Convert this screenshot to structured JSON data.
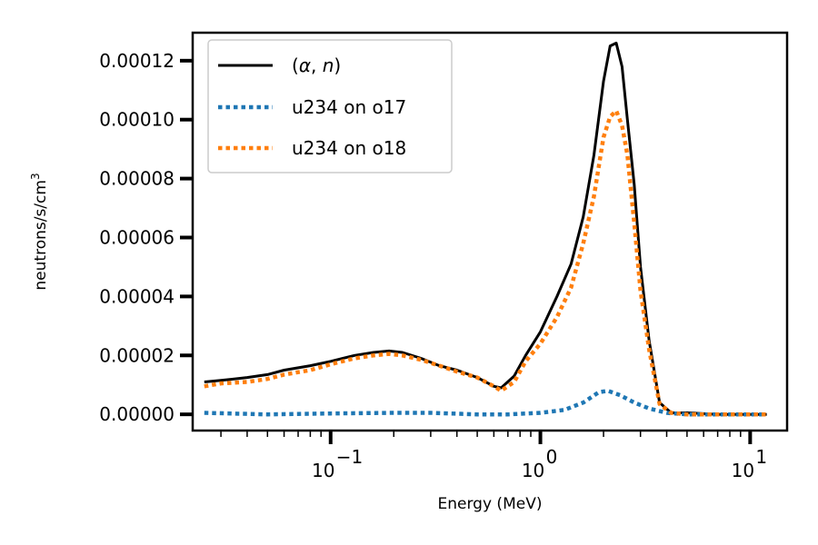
{
  "chart_data": {
    "type": "line",
    "xlabel": "Energy (MeV)",
    "ylabel": "neutrons/s/cm",
    "ylabel_sup": "3",
    "xscale": "log",
    "xlim": [
      0.022,
      15
    ],
    "ylim": [
      -5.5e-06,
      0.0001295
    ],
    "yticks": [
      0,
      2e-05,
      4e-05,
      6e-05,
      8e-05,
      0.0001,
      0.00012
    ],
    "ytick_labels": [
      "0.00000",
      "0.00002",
      "0.00004",
      "0.00006",
      "0.00008",
      "0.00010",
      "0.00012"
    ],
    "xticks": [
      0.1,
      1,
      10
    ],
    "xtick_labels": [
      {
        "base": "10",
        "exp": "−1"
      },
      {
        "base": "10",
        "exp": "0"
      },
      {
        "base": "10",
        "exp": "1"
      }
    ],
    "legend": {
      "position": "top-left"
    },
    "series": [
      {
        "name": "(α, n)",
        "name_parts": {
          "open": "(",
          "a": "α",
          "sep": ", ",
          "b": "n",
          "close": ")"
        },
        "color": "#000000",
        "style": "solid",
        "x": [
          0.025,
          0.03,
          0.04,
          0.05,
          0.06,
          0.08,
          0.1,
          0.13,
          0.16,
          0.19,
          0.22,
          0.27,
          0.33,
          0.4,
          0.5,
          0.6,
          0.65,
          0.75,
          0.85,
          1.0,
          1.2,
          1.4,
          1.6,
          1.8,
          2.0,
          2.15,
          2.3,
          2.45,
          2.6,
          2.8,
          3.0,
          3.3,
          3.7,
          4.2,
          5.0,
          7.0,
          9.0,
          12.0
        ],
        "y": [
          1.1e-05,
          1.15e-05,
          1.25e-05,
          1.35e-05,
          1.5e-05,
          1.65e-05,
          1.8e-05,
          2e-05,
          2.1e-05,
          2.15e-05,
          2.1e-05,
          1.9e-05,
          1.65e-05,
          1.5e-05,
          1.25e-05,
          9.5e-06,
          9e-06,
          1.3e-05,
          2e-05,
          2.8e-05,
          4e-05,
          5.1e-05,
          6.7e-05,
          8.8e-05,
          0.000113,
          0.000125,
          0.000126,
          0.000118,
          0.0001,
          7.8e-05,
          5e-05,
          2.5e-05,
          4e-06,
          5e-07,
          5e-07,
          0.0,
          0.0,
          0.0
        ]
      },
      {
        "name": "u234 on o17",
        "color": "#1f77b4",
        "style": "dotted",
        "x": [
          0.025,
          0.05,
          0.1,
          0.2,
          0.3,
          0.5,
          0.7,
          1.0,
          1.3,
          1.6,
          1.9,
          2.1,
          2.4,
          2.8,
          3.3,
          4.0,
          5.0,
          7.0,
          9.0,
          12.0
        ],
        "y": [
          5e-07,
          0.0,
          3e-07,
          5e-07,
          5e-07,
          0.0,
          0.0,
          5e-07,
          1.5e-06,
          4e-06,
          7.5e-06,
          8e-06,
          6.5e-06,
          4e-06,
          2e-06,
          5e-07,
          0.0,
          0.0,
          0.0,
          0.0
        ]
      },
      {
        "name": "u234 on o18",
        "color": "#ff7f0e",
        "style": "dotted",
        "x": [
          0.025,
          0.03,
          0.04,
          0.05,
          0.06,
          0.08,
          0.1,
          0.13,
          0.16,
          0.19,
          0.22,
          0.27,
          0.33,
          0.4,
          0.5,
          0.6,
          0.65,
          0.75,
          0.85,
          1.0,
          1.2,
          1.4,
          1.6,
          1.8,
          2.0,
          2.15,
          2.3,
          2.45,
          2.6,
          2.8,
          3.0,
          3.3,
          3.7,
          4.2,
          5.0,
          7.0,
          9.0,
          12.0
        ],
        "y": [
          9.5e-06,
          1.05e-05,
          1.1e-05,
          1.2e-05,
          1.35e-05,
          1.5e-05,
          1.7e-05,
          1.9e-05,
          2e-05,
          2.05e-05,
          2e-05,
          1.85e-05,
          1.65e-05,
          1.45e-05,
          1.25e-05,
          9.5e-06,
          8e-06,
          1.1e-05,
          1.8e-05,
          2.4e-05,
          3.3e-05,
          4.3e-05,
          5.8e-05,
          7.4e-05,
          9.4e-05,
          0.000101,
          0.000103,
          9.8e-05,
          8.8e-05,
          6.5e-05,
          4.2e-05,
          2.2e-05,
          3.5e-06,
          5e-07,
          0.0,
          0.0,
          0.0,
          0.0
        ]
      }
    ]
  }
}
